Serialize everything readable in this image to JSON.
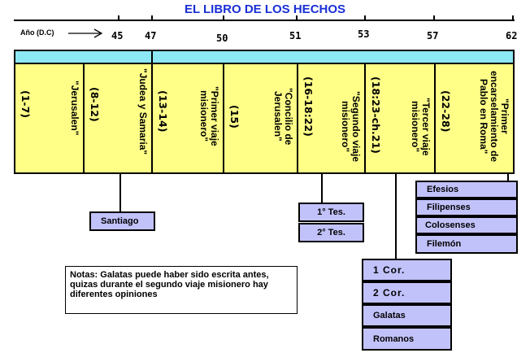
{
  "title": "EL LIBRO DE LOS HECHOS",
  "axis_label": "Año (D.C)",
  "years": [
    "45",
    "47",
    "50",
    "51",
    "53",
    "57",
    "62"
  ],
  "columns": [
    {
      "ref": "(1-7)",
      "label": "\"Jerusalen\""
    },
    {
      "ref": "(8-12)",
      "label": "\"Judea y Samaria\""
    },
    {
      "ref": "(13-14)",
      "label": "\"Primer viaje misionero\""
    },
    {
      "ref": "(15)",
      "label": "\"Concilio de Jerusalen\""
    },
    {
      "ref": "(16-18:22)",
      "label": "\"Segundo viaje misionero\""
    },
    {
      "ref": "(18:23-ch.21)",
      "label": "\"Tercer viaje misionero\""
    },
    {
      "ref": "(22-28)",
      "label": "\"Primer encarselamiento de Pablo en Roma\""
    }
  ],
  "letters": {
    "santiago": "Santiago",
    "tes": [
      "1° Tes.",
      "2° Tes."
    ],
    "prison": [
      "Efesios",
      "Filipenses",
      "Colosenses",
      "Filemón"
    ],
    "third": [
      "1 Cor.",
      "2 Cor.",
      "Galatas",
      "Romanos"
    ]
  },
  "notes": "Notas: Galatas puede haber sido escrita antes, quizas durante el segundo viaje misionero hay diferentes opiniones",
  "colors": {
    "title": "#1a2fd6",
    "columns": "#ffff88",
    "bar": "#8de8f5",
    "boxes": "#c2c2fb"
  }
}
